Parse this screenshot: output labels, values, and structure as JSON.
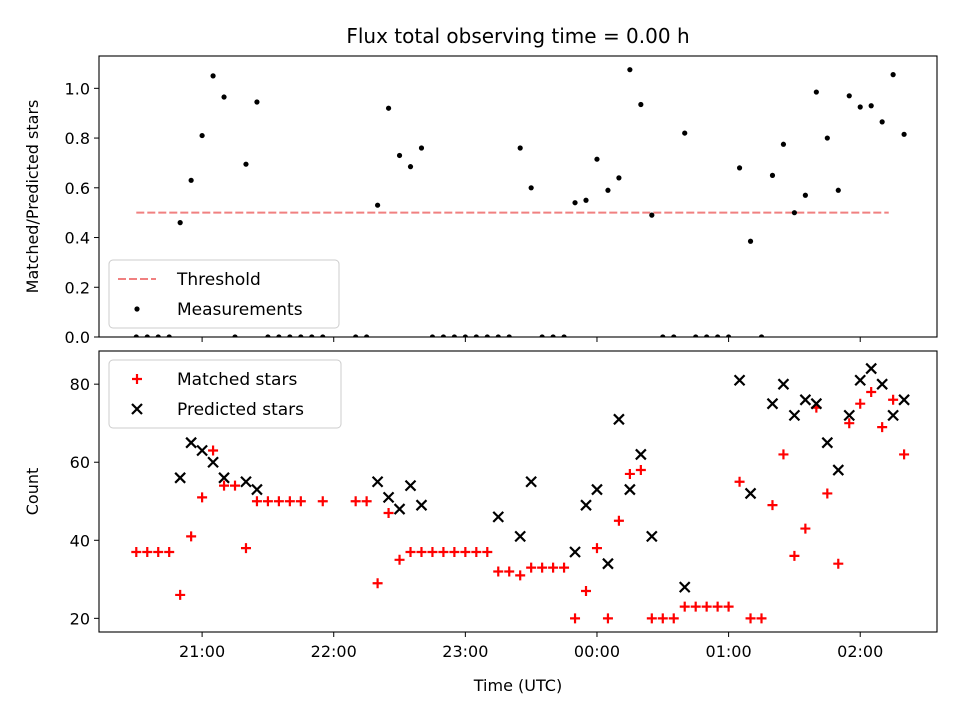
{
  "title": "Flux total observing time = 0.00 h",
  "chart_data": [
    {
      "type": "scatter",
      "ylabel": "Matched/Predicted stars",
      "xlabel": "",
      "x_range": [
        "20:13",
        "02:35"
      ],
      "ylim": [
        0,
        1.13
      ],
      "yticks": [
        0.0,
        0.2,
        0.4,
        0.6,
        0.8,
        1.0
      ],
      "yticklabels": [
        "0.0",
        "0.2",
        "0.4",
        "0.6",
        "0.8",
        "1.0"
      ],
      "xticks": [
        "21:00",
        "22:00",
        "23:00",
        "00:00",
        "01:00",
        "02:00"
      ],
      "grid": false,
      "legend": "lower-left",
      "threshold": {
        "name": "Threshold",
        "value": 0.5,
        "x_start": "20:30",
        "x_end": "02:13",
        "color": "#f08080",
        "style": "dashed"
      },
      "series": [
        {
          "name": "Measurements",
          "marker": "dot",
          "color": "#000000",
          "points": [
            [
              "20:30",
              0.0
            ],
            [
              "20:35",
              0.0
            ],
            [
              "20:40",
              0.0
            ],
            [
              "20:45",
              0.0
            ],
            [
              "20:50",
              0.46
            ],
            [
              "20:55",
              0.63
            ],
            [
              "21:00",
              0.81
            ],
            [
              "21:05",
              1.05
            ],
            [
              "21:10",
              0.965
            ],
            [
              "21:15",
              0.0
            ],
            [
              "21:20",
              0.695
            ],
            [
              "21:25",
              0.945
            ],
            [
              "21:30",
              0.0
            ],
            [
              "21:35",
              0.0
            ],
            [
              "21:40",
              0.0
            ],
            [
              "21:45",
              0.0
            ],
            [
              "21:50",
              0.0
            ],
            [
              "21:55",
              0.0
            ],
            [
              "22:10",
              0.0
            ],
            [
              "22:15",
              0.0
            ],
            [
              "22:20",
              0.53
            ],
            [
              "22:25",
              0.92
            ],
            [
              "22:30",
              0.73
            ],
            [
              "22:35",
              0.685
            ],
            [
              "22:40",
              0.76
            ],
            [
              "22:45",
              0.0
            ],
            [
              "22:50",
              0.0
            ],
            [
              "22:55",
              0.0
            ],
            [
              "23:00",
              0.0
            ],
            [
              "23:05",
              0.0
            ],
            [
              "23:10",
              0.0
            ],
            [
              "23:15",
              0.0
            ],
            [
              "23:20",
              0.0
            ],
            [
              "23:25",
              0.76
            ],
            [
              "23:30",
              0.6
            ],
            [
              "23:35",
              0.0
            ],
            [
              "23:40",
              0.0
            ],
            [
              "23:45",
              0.0
            ],
            [
              "23:50",
              0.54
            ],
            [
              "23:55",
              0.55
            ],
            [
              "00:00",
              0.715
            ],
            [
              "00:05",
              0.59
            ],
            [
              "00:10",
              0.64
            ],
            [
              "00:15",
              1.075
            ],
            [
              "00:20",
              0.935
            ],
            [
              "00:25",
              0.49
            ],
            [
              "00:30",
              0.0
            ],
            [
              "00:35",
              0.0
            ],
            [
              "00:40",
              0.82
            ],
            [
              "00:45",
              0.0
            ],
            [
              "00:50",
              0.0
            ],
            [
              "00:55",
              0.0
            ],
            [
              "01:00",
              0.0
            ],
            [
              "01:05",
              0.68
            ],
            [
              "01:10",
              0.385
            ],
            [
              "01:15",
              0.0
            ],
            [
              "01:20",
              0.65
            ],
            [
              "01:25",
              0.775
            ],
            [
              "01:30",
              0.5
            ],
            [
              "01:35",
              0.57
            ],
            [
              "01:40",
              0.985
            ],
            [
              "01:45",
              0.8
            ],
            [
              "01:50",
              0.59
            ],
            [
              "01:55",
              0.97
            ],
            [
              "02:00",
              0.925
            ],
            [
              "02:05",
              0.93
            ],
            [
              "02:10",
              0.865
            ],
            [
              "02:15",
              1.055
            ],
            [
              "02:20",
              0.815
            ]
          ]
        }
      ]
    },
    {
      "type": "scatter",
      "ylabel": "Count",
      "xlabel": "Time (UTC)",
      "x_range": [
        "20:13",
        "02:35"
      ],
      "ylim": [
        16.5,
        88.5
      ],
      "yticks": [
        20,
        40,
        60,
        80
      ],
      "yticklabels": [
        "20",
        "40",
        "60",
        "80"
      ],
      "xticks": [
        "21:00",
        "22:00",
        "23:00",
        "00:00",
        "01:00",
        "02:00"
      ],
      "xticklabels": [
        "21:00",
        "22:00",
        "23:00",
        "00:00",
        "01:00",
        "02:00"
      ],
      "grid": false,
      "legend": "top-left",
      "series": [
        {
          "name": "Matched stars",
          "marker": "plus",
          "color": "#ff0000",
          "points": [
            [
              "20:30",
              37
            ],
            [
              "20:35",
              37
            ],
            [
              "20:40",
              37
            ],
            [
              "20:45",
              37
            ],
            [
              "20:50",
              26
            ],
            [
              "20:55",
              41
            ],
            [
              "21:00",
              51
            ],
            [
              "21:05",
              63
            ],
            [
              "21:10",
              54
            ],
            [
              "21:15",
              54
            ],
            [
              "21:20",
              38
            ],
            [
              "21:25",
              50
            ],
            [
              "21:30",
              50
            ],
            [
              "21:35",
              50
            ],
            [
              "21:40",
              50
            ],
            [
              "21:45",
              50
            ],
            [
              "21:55",
              50
            ],
            [
              "22:10",
              50
            ],
            [
              "22:15",
              50
            ],
            [
              "22:20",
              29
            ],
            [
              "22:25",
              47
            ],
            [
              "22:30",
              35
            ],
            [
              "22:35",
              37
            ],
            [
              "22:40",
              37
            ],
            [
              "22:45",
              37
            ],
            [
              "22:50",
              37
            ],
            [
              "22:55",
              37
            ],
            [
              "23:00",
              37
            ],
            [
              "23:05",
              37
            ],
            [
              "23:10",
              37
            ],
            [
              "23:15",
              32
            ],
            [
              "23:20",
              32
            ],
            [
              "23:25",
              31
            ],
            [
              "23:30",
              33
            ],
            [
              "23:35",
              33
            ],
            [
              "23:40",
              33
            ],
            [
              "23:45",
              33
            ],
            [
              "23:50",
              20
            ],
            [
              "23:55",
              27
            ],
            [
              "00:00",
              38
            ],
            [
              "00:05",
              20
            ],
            [
              "00:10",
              45
            ],
            [
              "00:15",
              57
            ],
            [
              "00:20",
              58
            ],
            [
              "00:25",
              20
            ],
            [
              "00:30",
              20
            ],
            [
              "00:35",
              20
            ],
            [
              "00:40",
              23
            ],
            [
              "00:45",
              23
            ],
            [
              "00:50",
              23
            ],
            [
              "00:55",
              23
            ],
            [
              "01:00",
              23
            ],
            [
              "01:05",
              55
            ],
            [
              "01:10",
              20
            ],
            [
              "01:15",
              20
            ],
            [
              "01:20",
              49
            ],
            [
              "01:25",
              62
            ],
            [
              "01:30",
              36
            ],
            [
              "01:35",
              43
            ],
            [
              "01:40",
              74
            ],
            [
              "01:45",
              52
            ],
            [
              "01:50",
              34
            ],
            [
              "01:55",
              70
            ],
            [
              "02:00",
              75
            ],
            [
              "02:05",
              78
            ],
            [
              "02:10",
              69
            ],
            [
              "02:15",
              76
            ],
            [
              "02:20",
              62
            ]
          ]
        },
        {
          "name": "Predicted stars",
          "marker": "x",
          "color": "#000000",
          "points": [
            [
              "20:50",
              56
            ],
            [
              "20:55",
              65
            ],
            [
              "21:00",
              63
            ],
            [
              "21:05",
              60
            ],
            [
              "21:10",
              56
            ],
            [
              "21:20",
              55
            ],
            [
              "21:25",
              53
            ],
            [
              "22:20",
              55
            ],
            [
              "22:25",
              51
            ],
            [
              "22:30",
              48
            ],
            [
              "22:35",
              54
            ],
            [
              "22:40",
              49
            ],
            [
              "23:15",
              46
            ],
            [
              "23:25",
              41
            ],
            [
              "23:30",
              55
            ],
            [
              "23:50",
              37
            ],
            [
              "23:55",
              49
            ],
            [
              "00:00",
              53
            ],
            [
              "00:05",
              34
            ],
            [
              "00:10",
              71
            ],
            [
              "00:15",
              53
            ],
            [
              "00:20",
              62
            ],
            [
              "00:25",
              41
            ],
            [
              "00:40",
              28
            ],
            [
              "01:05",
              81
            ],
            [
              "01:10",
              52
            ],
            [
              "01:20",
              75
            ],
            [
              "01:25",
              80
            ],
            [
              "01:30",
              72
            ],
            [
              "01:35",
              76
            ],
            [
              "01:40",
              75
            ],
            [
              "01:45",
              65
            ],
            [
              "01:50",
              58
            ],
            [
              "01:55",
              72
            ],
            [
              "02:00",
              81
            ],
            [
              "02:05",
              84
            ],
            [
              "02:10",
              80
            ],
            [
              "02:15",
              72
            ],
            [
              "02:20",
              76
            ]
          ]
        }
      ]
    }
  ]
}
